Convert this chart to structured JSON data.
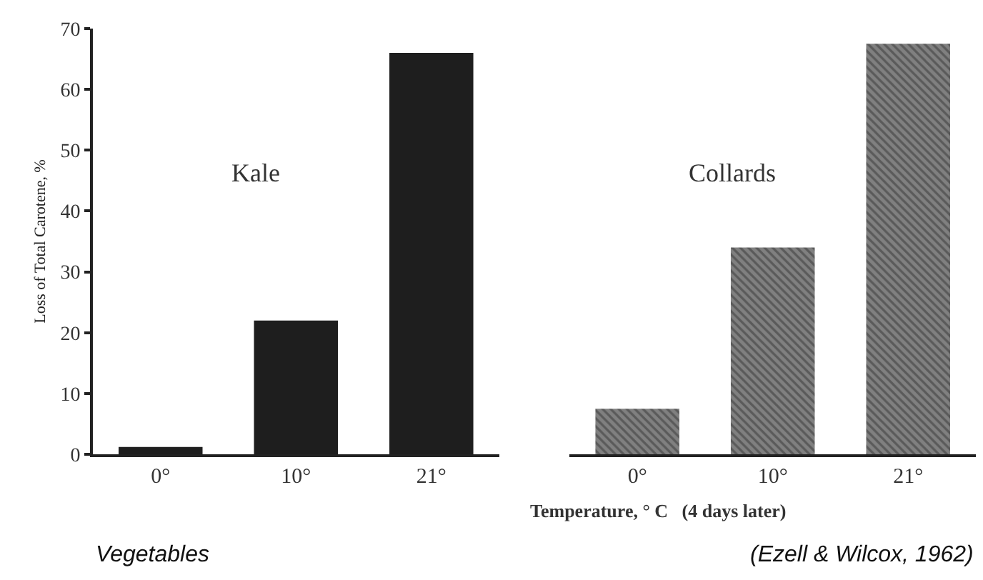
{
  "chart_data": [
    {
      "type": "bar",
      "categories": [
        "0°",
        "10°",
        "21°"
      ],
      "values": [
        1.2,
        22,
        66
      ],
      "color": "#1e1e1e",
      "ylim": [
        0,
        70
      ],
      "yticks": [
        0,
        10,
        20,
        30,
        40,
        50,
        60,
        70
      ],
      "ylabel": "Loss of Total Carotene, %",
      "xlabel": "Temperature, ° C   (4 days later)",
      "annotations": [
        "Kale",
        "Vegetables"
      ]
    },
    {
      "type": "bar",
      "categories": [
        "0°",
        "10°",
        "21°"
      ],
      "values": [
        7.5,
        34,
        67.5
      ],
      "color": "#808080",
      "ylim": [
        0,
        70
      ],
      "yticks": [
        0,
        10,
        20,
        30,
        40,
        50,
        60,
        70
      ],
      "tick_labels": "x",
      "annotations": [
        "Collards",
        "(Ezell & Wilcox, 1962)"
      ]
    }
  ]
}
